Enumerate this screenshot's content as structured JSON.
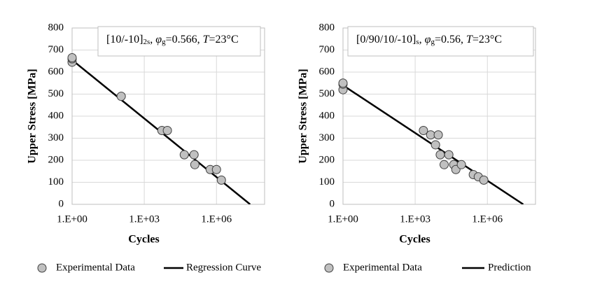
{
  "chart_data": [
    {
      "type": "scatter",
      "annotation": [
        "[10/-10]",
        "2s",
        ", ",
        "φ",
        "g",
        "=0.566, ",
        "T",
        "=23°C"
      ],
      "x_label": "Cycles",
      "y_label": "Upper Stress [MPa]",
      "xlim": [
        1,
        100000000
      ],
      "log_x": true,
      "xticks": [
        {
          "value": 1,
          "label": "1.E+00"
        },
        {
          "value": 1000,
          "label": "1.E+03"
        },
        {
          "value": 1000000,
          "label": "1.E+06"
        }
      ],
      "ylim": [
        0,
        800
      ],
      "yticks": [
        0,
        100,
        200,
        300,
        400,
        500,
        600,
        700,
        800
      ],
      "grid": true,
      "series": [
        {
          "name": "Experimental Data",
          "type": "scatter",
          "color": "#c0c0c0",
          "x": [
            1,
            1,
            1,
            110,
            5400,
            9100,
            46000,
            117000,
            126000,
            550000,
            1000000,
            1600000
          ],
          "values": [
            645,
            660,
            665,
            490,
            335,
            335,
            225,
            225,
            180,
            158,
            158,
            110
          ]
        },
        {
          "name": "Regression Curve",
          "type": "line",
          "color": "#000000",
          "x": [
            1,
            25000000
          ],
          "values": [
            655,
            0
          ]
        }
      ]
    },
    {
      "type": "scatter",
      "annotation": [
        "[0/90/10/-10]",
        "s",
        ", ",
        "φ",
        "g",
        "=0.56, ",
        "T",
        "=23°C"
      ],
      "x_label": "Cycles",
      "y_label": "Upper Stress [MPa]",
      "xlim": [
        1,
        100000000
      ],
      "log_x": true,
      "xticks": [
        {
          "value": 1,
          "label": "1.E+00"
        },
        {
          "value": 1000,
          "label": "1.E+03"
        },
        {
          "value": 1000000,
          "label": "1.E+06"
        }
      ],
      "ylim": [
        0,
        800
      ],
      "yticks": [
        0,
        100,
        200,
        300,
        400,
        500,
        600,
        700,
        800
      ],
      "grid": true,
      "series": [
        {
          "name": "Experimental Data",
          "type": "scatter",
          "color": "#c0c0c0",
          "x": [
            1,
            1,
            1,
            2200,
            4400,
            9100,
            7000,
            11000,
            16000,
            25000,
            40000,
            49000,
            83000,
            260000,
            420000,
            710000
          ],
          "values": [
            520,
            545,
            550,
            335,
            315,
            315,
            270,
            225,
            180,
            225,
            180,
            158,
            180,
            135,
            125,
            110
          ]
        },
        {
          "name": "Prediction",
          "type": "line",
          "color": "#000000",
          "x": [
            1,
            31000000
          ],
          "values": [
            540,
            0
          ]
        }
      ]
    }
  ]
}
